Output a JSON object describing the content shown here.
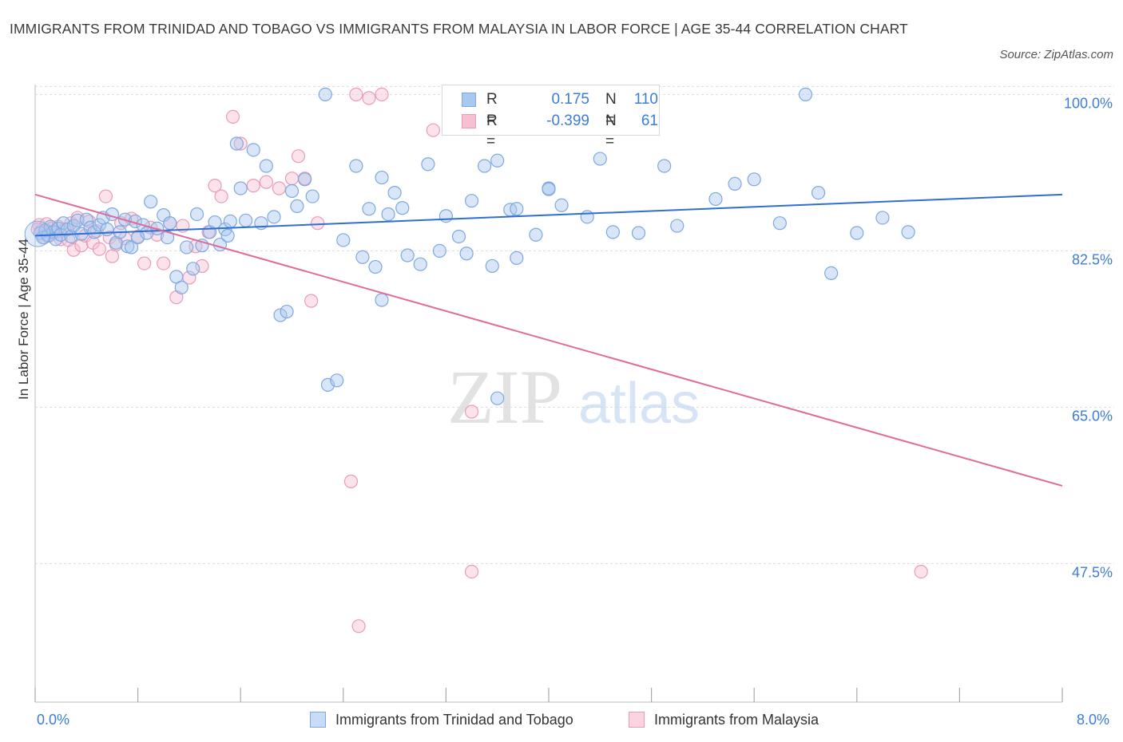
{
  "title": "IMMIGRANTS FROM TRINIDAD AND TOBAGO VS IMMIGRANTS FROM MALAYSIA IN LABOR FORCE | AGE 35-44 CORRELATION CHART",
  "source": "Source: ZipAtlas.com",
  "watermark": {
    "zip": "ZIP",
    "atlas": "atlas"
  },
  "colors": {
    "blue_fill": "#a9c8f0",
    "blue_stroke": "#7ea8e0",
    "blue_line": "#2f6fd1",
    "pink_fill": "#f7c0d2",
    "pink_stroke": "#eb9ab8",
    "pink_line": "#e06a98",
    "grid": "#dddddd",
    "axis_text": "#3d7dd8"
  },
  "legend": {
    "r_label": "R =",
    "n_label": "N =",
    "rows": [
      {
        "r": "0.175",
        "n": "110",
        "color_fill": "#a9c8f0",
        "color_stroke": "#7ea8e0"
      },
      {
        "r": "-0.399",
        "n": "61",
        "color_fill": "#f7c0d2",
        "color_stroke": "#eb9ab8"
      }
    ]
  },
  "chart_data": {
    "type": "scatter",
    "title": "IMMIGRANTS FROM TRINIDAD AND TOBAGO VS IMMIGRANTS FROM MALAYSIA IN LABOR FORCE | AGE 35-44 CORRELATION CHART",
    "xlabel": "",
    "ylabel": "In Labor Force | Age 35-44",
    "xlim": [
      0,
      8
    ],
    "ylim": [
      32,
      102
    ],
    "x_tick_labels": [
      "0.0%",
      "8.0%"
    ],
    "y_ticks": [
      47.5,
      65.0,
      82.5,
      100.0
    ],
    "y_tick_labels": [
      "47.5%",
      "65.0%",
      "82.5%",
      "100.0%"
    ],
    "grid": true,
    "legend_position": "top-center",
    "series": [
      {
        "name": "Immigrants from Trinidad and Tobago",
        "r": 0.175,
        "n": 110,
        "trend": {
          "x": [
            0,
            8
          ],
          "y": [
            84.2,
            88.8
          ]
        },
        "points": [
          [
            0.04,
            84.5
          ],
          [
            0.06,
            84.0
          ],
          [
            0.08,
            84.8
          ],
          [
            0.1,
            84.2
          ],
          [
            0.12,
            85.2
          ],
          [
            0.14,
            84.6
          ],
          [
            0.16,
            83.8
          ],
          [
            0.18,
            85.0
          ],
          [
            0.2,
            84.3
          ],
          [
            0.22,
            85.6
          ],
          [
            0.25,
            84.9
          ],
          [
            0.28,
            84.1
          ],
          [
            0.3,
            85.3
          ],
          [
            0.33,
            85.9
          ],
          [
            0.36,
            84.4
          ],
          [
            0.4,
            86.0
          ],
          [
            0.43,
            85.1
          ],
          [
            0.46,
            84.6
          ],
          [
            0.5,
            85.4
          ],
          [
            0.53,
            86.2
          ],
          [
            0.56,
            84.9
          ],
          [
            0.6,
            86.6
          ],
          [
            0.63,
            83.4
          ],
          [
            0.66,
            84.6
          ],
          [
            0.7,
            86.0
          ],
          [
            0.72,
            83.0
          ],
          [
            0.75,
            82.9
          ],
          [
            0.78,
            85.8
          ],
          [
            0.8,
            84.0
          ],
          [
            0.84,
            85.4
          ],
          [
            0.87,
            84.5
          ],
          [
            0.9,
            88.0
          ],
          [
            0.95,
            85.0
          ],
          [
            1.0,
            86.5
          ],
          [
            1.03,
            84.0
          ],
          [
            1.05,
            85.6
          ],
          [
            1.1,
            79.6
          ],
          [
            1.14,
            78.4
          ],
          [
            1.18,
            82.9
          ],
          [
            1.23,
            80.5
          ],
          [
            1.26,
            86.6
          ],
          [
            1.3,
            83.1
          ],
          [
            1.36,
            84.6
          ],
          [
            1.4,
            85.7
          ],
          [
            1.44,
            83.2
          ],
          [
            1.48,
            84.9
          ],
          [
            1.52,
            85.8
          ],
          [
            1.57,
            94.5
          ],
          [
            1.6,
            89.5
          ],
          [
            1.64,
            85.9
          ],
          [
            1.7,
            93.8
          ],
          [
            1.76,
            85.6
          ],
          [
            1.8,
            92.0
          ],
          [
            1.86,
            86.3
          ],
          [
            1.91,
            75.3
          ],
          [
            1.96,
            75.7
          ],
          [
            2.0,
            89.2
          ],
          [
            2.04,
            87.5
          ],
          [
            2.1,
            90.5
          ],
          [
            2.16,
            88.6
          ],
          [
            2.26,
            100.0
          ],
          [
            2.28,
            67.5
          ],
          [
            2.35,
            68.0
          ],
          [
            2.4,
            83.7
          ],
          [
            2.5,
            92.0
          ],
          [
            2.55,
            81.8
          ],
          [
            2.6,
            87.2
          ],
          [
            2.65,
            80.7
          ],
          [
            2.7,
            90.7
          ],
          [
            2.75,
            86.6
          ],
          [
            2.8,
            89.0
          ],
          [
            2.86,
            87.3
          ],
          [
            2.9,
            82.0
          ],
          [
            3.06,
            92.2
          ],
          [
            3.15,
            82.5
          ],
          [
            3.2,
            86.4
          ],
          [
            3.3,
            84.1
          ],
          [
            3.36,
            82.2
          ],
          [
            3.4,
            88.1
          ],
          [
            3.5,
            92.0
          ],
          [
            3.56,
            80.8
          ],
          [
            3.6,
            92.6
          ],
          [
            3.6,
            66.0
          ],
          [
            3.7,
            87.1
          ],
          [
            3.75,
            87.2
          ],
          [
            3.75,
            81.7
          ],
          [
            3.9,
            84.3
          ],
          [
            4.0,
            89.5
          ],
          [
            4.0,
            89.4
          ],
          [
            4.1,
            87.6
          ],
          [
            4.3,
            86.3
          ],
          [
            4.4,
            92.8
          ],
          [
            4.5,
            84.6
          ],
          [
            4.7,
            84.5
          ],
          [
            5.0,
            85.3
          ],
          [
            4.75,
            98.0
          ],
          [
            5.3,
            88.3
          ],
          [
            5.45,
            90.0
          ],
          [
            5.6,
            90.5
          ],
          [
            6.0,
            100.0
          ],
          [
            6.2,
            80.0
          ],
          [
            6.8,
            84.6
          ],
          [
            6.4,
            84.5
          ],
          [
            6.1,
            89.0
          ],
          [
            5.8,
            85.6
          ],
          [
            6.6,
            86.2
          ],
          [
            4.9,
            92.0
          ],
          [
            3.0,
            81.0
          ],
          [
            2.7,
            77.0
          ],
          [
            1.5,
            84.2
          ]
        ]
      },
      {
        "name": "Immigrants from Malaysia",
        "r": -0.399,
        "n": 61,
        "trend": {
          "x": [
            0,
            8
          ],
          "y": [
            88.8,
            56.2
          ]
        },
        "points": [
          [
            0.03,
            85.4
          ],
          [
            0.05,
            84.8
          ],
          [
            0.07,
            84.0
          ],
          [
            0.09,
            85.5
          ],
          [
            0.11,
            84.2
          ],
          [
            0.13,
            85.0
          ],
          [
            0.16,
            84.6
          ],
          [
            0.18,
            85.2
          ],
          [
            0.2,
            83.8
          ],
          [
            0.23,
            84.9
          ],
          [
            0.26,
            83.7
          ],
          [
            0.28,
            85.6
          ],
          [
            0.3,
            82.6
          ],
          [
            0.33,
            86.2
          ],
          [
            0.36,
            83.1
          ],
          [
            0.39,
            84.2
          ],
          [
            0.42,
            85.8
          ],
          [
            0.45,
            83.4
          ],
          [
            0.48,
            84.7
          ],
          [
            0.5,
            82.7
          ],
          [
            0.55,
            88.6
          ],
          [
            0.58,
            84.0
          ],
          [
            0.6,
            81.9
          ],
          [
            0.63,
            83.2
          ],
          [
            0.67,
            85.6
          ],
          [
            0.7,
            83.9
          ],
          [
            0.75,
            86.1
          ],
          [
            0.8,
            84.1
          ],
          [
            0.85,
            81.1
          ],
          [
            0.9,
            85.1
          ],
          [
            0.95,
            84.3
          ],
          [
            1.0,
            81.1
          ],
          [
            1.05,
            85.6
          ],
          [
            1.1,
            77.3
          ],
          [
            1.15,
            85.3
          ],
          [
            1.2,
            79.5
          ],
          [
            1.25,
            83.0
          ],
          [
            1.3,
            80.8
          ],
          [
            1.35,
            84.6
          ],
          [
            1.4,
            89.8
          ],
          [
            1.45,
            88.6
          ],
          [
            1.54,
            97.5
          ],
          [
            1.6,
            94.5
          ],
          [
            1.7,
            89.8
          ],
          [
            1.8,
            90.2
          ],
          [
            1.9,
            89.5
          ],
          [
            2.0,
            90.6
          ],
          [
            2.05,
            93.1
          ],
          [
            2.1,
            90.6
          ],
          [
            2.15,
            76.9
          ],
          [
            2.2,
            85.6
          ],
          [
            2.46,
            56.7
          ],
          [
            2.52,
            40.5
          ],
          [
            2.5,
            100.0
          ],
          [
            2.6,
            99.6
          ],
          [
            2.7,
            100.0
          ],
          [
            3.1,
            96.0
          ],
          [
            3.4,
            64.5
          ],
          [
            3.4,
            46.6
          ],
          [
            6.9,
            46.6
          ],
          [
            0.02,
            84.9
          ]
        ]
      }
    ]
  },
  "bottom_legend": [
    {
      "label": "Immigrants from Trinidad and Tobago",
      "color_fill": "#c9dcf7",
      "color_stroke": "#7ea8e0"
    },
    {
      "label": "Immigrants from Malaysia",
      "color_fill": "#fbd4e1",
      "color_stroke": "#eb9ab8"
    }
  ]
}
